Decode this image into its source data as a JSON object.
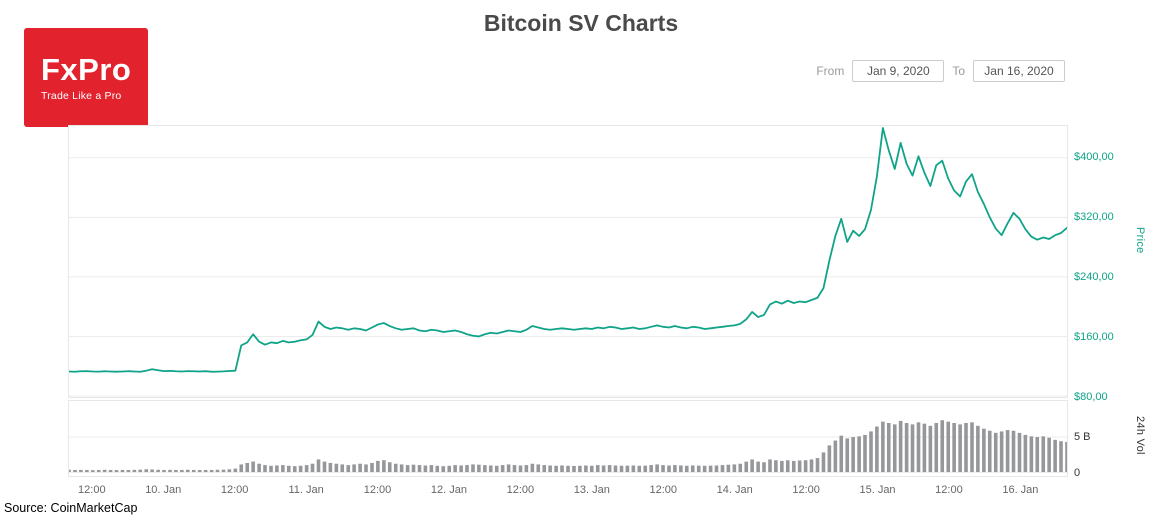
{
  "logo": {
    "name": "FxPro",
    "tagline": "Trade Like a Pro"
  },
  "header": {
    "title": "Bitcoin SV Charts"
  },
  "controls": {
    "from_label": "From",
    "from_value": "Jan 9, 2020",
    "to_label": "To",
    "to_value": "Jan 16, 2020"
  },
  "source": {
    "text": "Source: CoinMarketCap"
  },
  "colors": {
    "brand_red": "#e2232d",
    "line": "#0fa388",
    "axis_teal": "#0fa388",
    "grid": "#ececec",
    "panel_border": "#e7e7e7",
    "bar": "#96979b",
    "vol_tick": "#333333"
  },
  "chart_data": {
    "type": "line+bar",
    "title": "Bitcoin SV Charts",
    "x_unit": "hours from Jan 9 2020 ~08:00",
    "x_range": [
      0,
      168
    ],
    "x_ticks": [
      {
        "pos": 4,
        "label": "12:00"
      },
      {
        "pos": 16,
        "label": "10. Jan"
      },
      {
        "pos": 28,
        "label": "12:00"
      },
      {
        "pos": 40,
        "label": "11. Jan"
      },
      {
        "pos": 52,
        "label": "12:00"
      },
      {
        "pos": 64,
        "label": "12. Jan"
      },
      {
        "pos": 76,
        "label": "12:00"
      },
      {
        "pos": 88,
        "label": "13. Jan"
      },
      {
        "pos": 100,
        "label": "12:00"
      },
      {
        "pos": 112,
        "label": "14. Jan"
      },
      {
        "pos": 124,
        "label": "12:00"
      },
      {
        "pos": 136,
        "label": "15. Jan"
      },
      {
        "pos": 148,
        "label": "12:00"
      },
      {
        "pos": 160,
        "label": "16. Jan"
      }
    ],
    "panels": {
      "price": {
        "name": "Price (USD)",
        "ylabel": "Price",
        "ylim": [
          80,
          442.7
        ],
        "ticks": [
          {
            "value": 80,
            "label": "$80,00"
          },
          {
            "value": 160,
            "label": "$160,00"
          },
          {
            "value": 240,
            "label": "$240,00"
          },
          {
            "value": 320,
            "label": "$320,00"
          },
          {
            "value": 400,
            "label": "$400,00"
          }
        ],
        "values": [
          113,
          112.5,
          113.2,
          113.5,
          113,
          112.8,
          113.2,
          113,
          112.7,
          113,
          113.3,
          113,
          112.6,
          114,
          116,
          114.5,
          113.5,
          113.8,
          113.2,
          113,
          113.5,
          113.2,
          112.9,
          113.4,
          112.5,
          112.8,
          113.1,
          113.6,
          114,
          148,
          152,
          163,
          153,
          149,
          152,
          151,
          154,
          152,
          153,
          155,
          156,
          162,
          180,
          173,
          170,
          172,
          171,
          169,
          171,
          170,
          168,
          172,
          176,
          178,
          174,
          171,
          169,
          170,
          171,
          168,
          167,
          169,
          168,
          166,
          167,
          168,
          166,
          163,
          161,
          160,
          163,
          165,
          164,
          166,
          168,
          167,
          166,
          169,
          174,
          172,
          170,
          169,
          170,
          171,
          170,
          169,
          170,
          171,
          170,
          172,
          171,
          173,
          172,
          170,
          171,
          172,
          170,
          171,
          173,
          175,
          173,
          172,
          174,
          172,
          171,
          173,
          172,
          170,
          171,
          172,
          173,
          174,
          175,
          177,
          183,
          193,
          186,
          189,
          203,
          207,
          204,
          208,
          205,
          207,
          206,
          209,
          212,
          225,
          262,
          295,
          318,
          287,
          302,
          295,
          304,
          330,
          375,
          440,
          410,
          385,
          420,
          392,
          376,
          402,
          380,
          362,
          390,
          396,
          372,
          356,
          348,
          368,
          378,
          354,
          338,
          320,
          305,
          296,
          312,
          326,
          318,
          304,
          294,
          290,
          293,
          291,
          296,
          299,
          306
        ]
      },
      "volume": {
        "name": "24h Volume (B USD)",
        "ylabel": "24h Vol",
        "ylim": [
          0,
          10.14
        ],
        "ticks": [
          {
            "value": 0,
            "label": "0"
          },
          {
            "value": 5,
            "label": "5 B"
          }
        ],
        "values": [
          0.35,
          0.3,
          0.32,
          0.3,
          0.28,
          0.3,
          0.33,
          0.3,
          0.29,
          0.31,
          0.3,
          0.32,
          0.35,
          0.4,
          0.38,
          0.33,
          0.3,
          0.32,
          0.3,
          0.31,
          0.33,
          0.3,
          0.29,
          0.31,
          0.3,
          0.33,
          0.35,
          0.4,
          0.5,
          1.1,
          1.3,
          1.5,
          1.2,
          1.0,
          0.9,
          0.95,
          1.0,
          0.9,
          0.85,
          0.9,
          1.0,
          1.2,
          1.8,
          1.5,
          1.3,
          1.2,
          1.1,
          1.0,
          1.1,
          1.2,
          1.1,
          1.3,
          1.6,
          1.7,
          1.4,
          1.2,
          1.1,
          1.0,
          1.05,
          1.0,
          0.95,
          1.0,
          0.9,
          0.85,
          0.9,
          1.0,
          0.95,
          1.0,
          1.1,
          1.05,
          1.0,
          0.95,
          0.9,
          1.0,
          1.1,
          1.0,
          0.95,
          1.0,
          1.2,
          1.1,
          1.0,
          0.95,
          0.9,
          0.95,
          0.9,
          0.88,
          0.9,
          0.95,
          0.9,
          1.0,
          0.95,
          1.0,
          0.95,
          0.9,
          0.92,
          0.95,
          0.9,
          0.92,
          1.0,
          1.1,
          1.0,
          0.95,
          1.0,
          0.95,
          0.9,
          0.95,
          0.92,
          0.9,
          0.92,
          0.95,
          1.0,
          1.05,
          1.1,
          1.2,
          1.5,
          1.8,
          1.5,
          1.4,
          1.8,
          1.7,
          1.6,
          1.7,
          1.6,
          1.65,
          1.7,
          1.8,
          2.0,
          2.8,
          3.8,
          4.5,
          5.2,
          4.8,
          5.0,
          5.1,
          5.3,
          5.8,
          6.5,
          7.2,
          7.0,
          6.8,
          7.3,
          7.0,
          6.8,
          7.1,
          6.9,
          6.6,
          7.0,
          7.4,
          7.2,
          7.0,
          6.8,
          7.0,
          7.1,
          6.6,
          6.2,
          5.9,
          5.6,
          5.8,
          6.0,
          5.9,
          5.6,
          5.3,
          5.1,
          5.0,
          5.1,
          4.9,
          4.6,
          4.4,
          4.3
        ]
      }
    }
  }
}
